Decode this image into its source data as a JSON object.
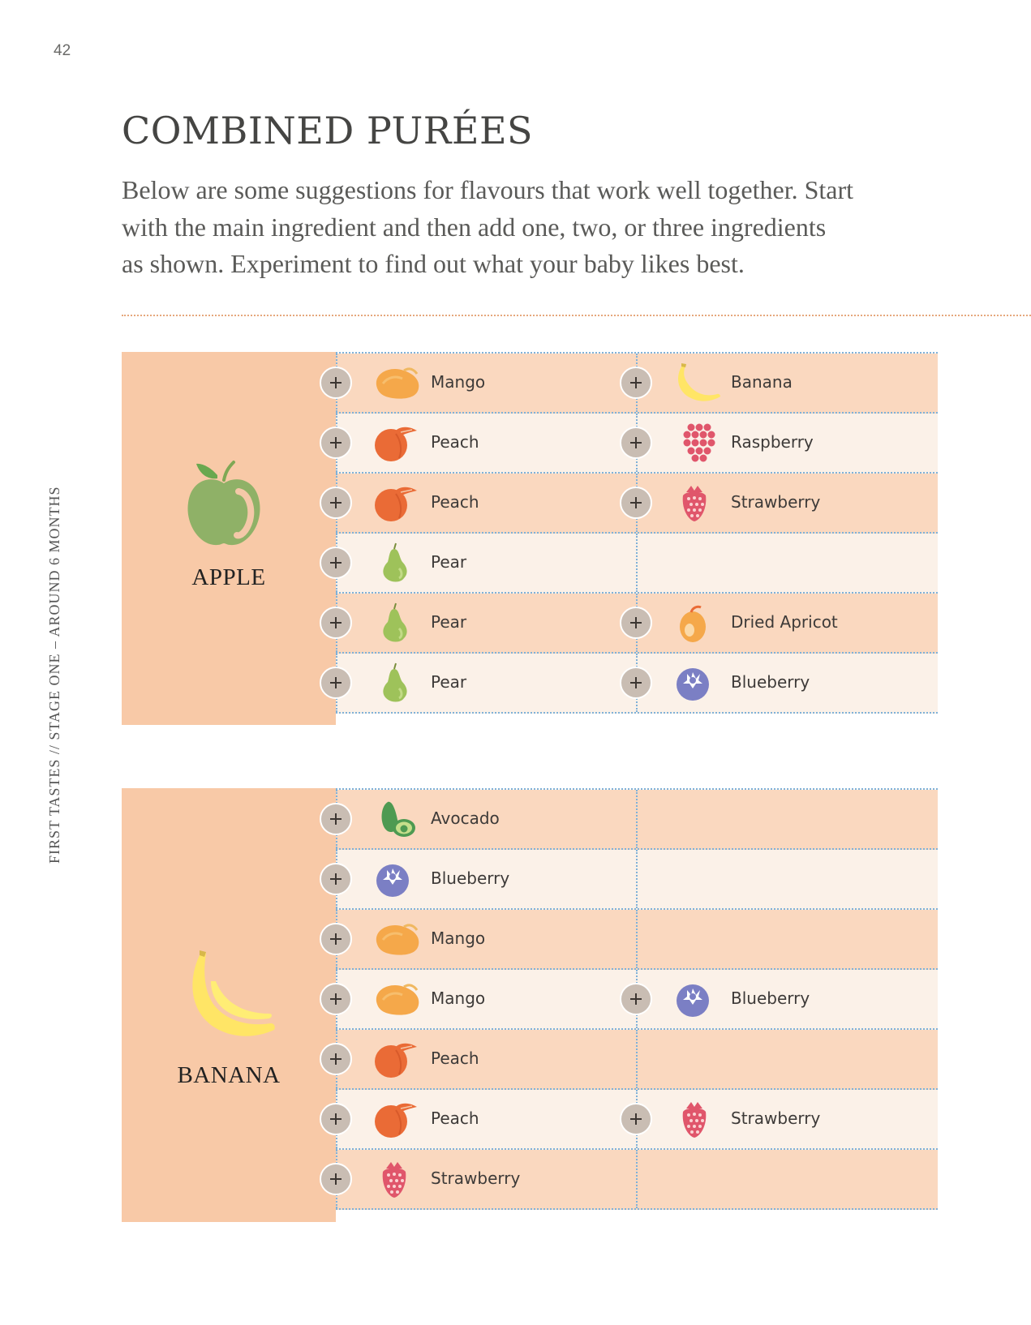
{
  "page_number": "42",
  "running_head": "FIRST TASTES // STAGE ONE – AROUND 6 MONTHS",
  "title": "COMBINED PURÉES",
  "intro_lines": [
    "Below are some suggestions for flavours that work well together. Start",
    "with the main ingredient and then add one, two, or three ingredients",
    "as shown. Experiment to find out what your baby likes best."
  ],
  "colors": {
    "main_cell": "#f8c9a7",
    "row_dark": "#fad8bf",
    "row_light": "#fbf1e8",
    "grid_dots": "#7fb1d8",
    "rule_dots": "#e6a77c",
    "plus_badge": "#c9bdb3"
  },
  "blocks": [
    {
      "main": {
        "label": "APPLE",
        "icon": "apple-icon"
      },
      "rows": [
        [
          {
            "label": "Mango",
            "icon": "mango-icon"
          },
          {
            "label": "Banana",
            "icon": "banana-icon"
          }
        ],
        [
          {
            "label": "Peach",
            "icon": "peach-icon"
          },
          {
            "label": "Raspberry",
            "icon": "raspberry-icon"
          }
        ],
        [
          {
            "label": "Peach",
            "icon": "peach-icon"
          },
          {
            "label": "Strawberry",
            "icon": "strawberry-icon"
          }
        ],
        [
          {
            "label": "Pear",
            "icon": "pear-icon"
          },
          null
        ],
        [
          {
            "label": "Pear",
            "icon": "pear-icon"
          },
          {
            "label": "Dried Apricot",
            "icon": "apricot-icon"
          }
        ],
        [
          {
            "label": "Pear",
            "icon": "pear-icon"
          },
          {
            "label": "Blueberry",
            "icon": "blueberry-icon"
          }
        ]
      ]
    },
    {
      "main": {
        "label": "BANANA",
        "icon": "banana-icon"
      },
      "rows": [
        [
          {
            "label": "Avocado",
            "icon": "avocado-icon"
          },
          null
        ],
        [
          {
            "label": "Blueberry",
            "icon": "blueberry-icon"
          },
          null
        ],
        [
          {
            "label": "Mango",
            "icon": "mango-icon"
          },
          null
        ],
        [
          {
            "label": "Mango",
            "icon": "mango-icon"
          },
          {
            "label": "Blueberry",
            "icon": "blueberry-icon"
          }
        ],
        [
          {
            "label": "Peach",
            "icon": "peach-icon"
          },
          null
        ],
        [
          {
            "label": "Peach",
            "icon": "peach-icon"
          },
          {
            "label": "Strawberry",
            "icon": "strawberry-icon"
          }
        ],
        [
          {
            "label": "Strawberry",
            "icon": "strawberry-icon"
          },
          null
        ]
      ]
    }
  ]
}
